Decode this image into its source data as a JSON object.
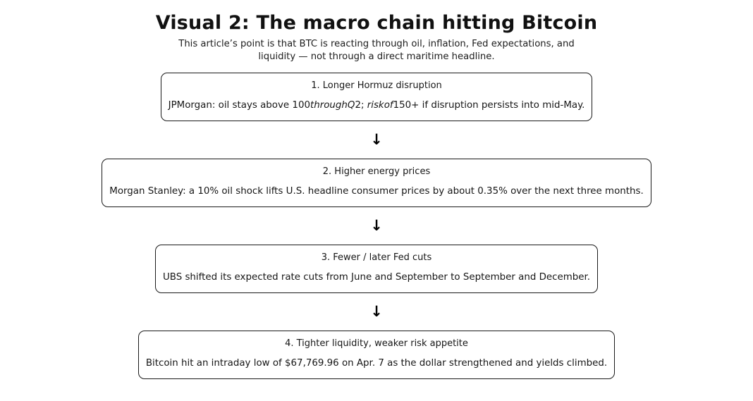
{
  "page": {
    "title": "Visual 2: The macro chain hitting Bitcoin",
    "subtitle_lines": [
      "This article’s point is that BTC is reacting through oil, inflation, Fed expectations, and",
      "liquidity — not through a direct maritime headline."
    ]
  },
  "flow": {
    "arrow_glyph": "↓",
    "boxes": [
      {
        "title": "1. Longer Hormuz disruption",
        "body_segments": [
          {
            "text": "JPMorgan: oil stays above 100",
            "italic": false
          },
          {
            "text": "throughQ",
            "italic": true
          },
          {
            "text": "2; ",
            "italic": false
          },
          {
            "text": "riskof",
            "italic": true
          },
          {
            "text": "150+ if disruption persists into mid-May.",
            "italic": false
          }
        ]
      },
      {
        "title": "2. Higher energy prices",
        "body_segments": [
          {
            "text": "Morgan Stanley: a 10% oil shock lifts U.S. headline consumer prices by about 0.35% over the next three months.",
            "italic": false
          }
        ]
      },
      {
        "title": "3. Fewer / later Fed cuts",
        "body_segments": [
          {
            "text": "UBS shifted its expected rate cuts from June and September to September and December.",
            "italic": false
          }
        ]
      },
      {
        "title": "4. Tighter liquidity, weaker risk appetite",
        "body_segments": [
          {
            "text": "Bitcoin hit an intraday low of $67,769.96 on Apr. 7 as the dollar strengthened and yields climbed.",
            "italic": false
          }
        ]
      }
    ]
  },
  "colors": {
    "text": "#111111",
    "border": "#1a1a1a",
    "background": "#ffffff"
  }
}
